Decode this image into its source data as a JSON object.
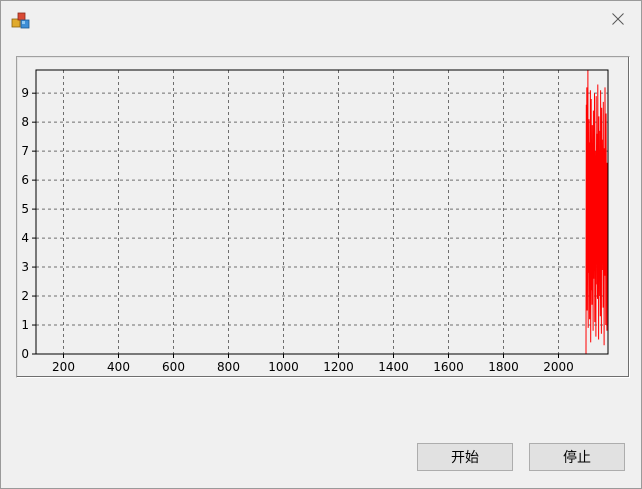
{
  "window": {
    "title": ""
  },
  "buttons": {
    "start_label": "开始",
    "stop_label": "停止"
  },
  "colors": {
    "series": "#ff0000",
    "grid": "#6e6e6e",
    "axis": "#000000"
  },
  "chart_data": {
    "type": "line",
    "title": "",
    "xlabel": "",
    "ylabel": "",
    "xlim": [
      100,
      2180
    ],
    "ylim": [
      0,
      9.8
    ],
    "xticks": [
      200,
      400,
      600,
      800,
      1000,
      1200,
      1400,
      1600,
      1800,
      2000
    ],
    "yticks": [
      0,
      1,
      2,
      3,
      4,
      5,
      6,
      7,
      8,
      9
    ],
    "grid": true,
    "series": [
      {
        "color": "#ff0000",
        "x": [
          100,
          2100,
          2101,
          2102,
          2103,
          2104,
          2105,
          2106,
          2107,
          2108,
          2109,
          2110,
          2111,
          2112,
          2113,
          2114,
          2115,
          2116,
          2117,
          2118,
          2119,
          2120,
          2121,
          2122,
          2123,
          2124,
          2125,
          2126,
          2127,
          2128,
          2129,
          2130,
          2131,
          2132,
          2133,
          2134,
          2135,
          2136,
          2137,
          2138,
          2139,
          2140,
          2141,
          2142,
          2143,
          2144,
          2145,
          2146,
          2147,
          2148,
          2149,
          2150,
          2151,
          2152,
          2153,
          2154,
          2155,
          2156,
          2157,
          2158,
          2159,
          2160,
          2161,
          2162,
          2163,
          2164,
          2165,
          2166,
          2167,
          2168,
          2169,
          2170,
          2171,
          2172,
          2173,
          2174,
          2175,
          2176,
          2177
        ],
        "y": [
          0,
          0,
          8.6,
          2.1,
          9.2,
          1.5,
          7.8,
          3.4,
          9.8,
          0.9,
          6.5,
          2.8,
          8.1,
          4.9,
          1.2,
          7.3,
          3.0,
          9.1,
          0.4,
          5.6,
          8.8,
          2.2,
          6.9,
          1.7,
          7.9,
          3.8,
          5.1,
          0.8,
          8.4,
          2.6,
          6.2,
          4.4,
          9.0,
          1.1,
          7.0,
          3.3,
          5.8,
          0.6,
          8.9,
          2.4,
          6.7,
          4.1,
          7.6,
          1.9,
          9.3,
          3.1,
          5.3,
          0.5,
          8.2,
          2.0,
          6.4,
          3.7,
          7.7,
          1.3,
          9.1,
          4.6,
          5.9,
          0.7,
          8.5,
          2.9,
          6.1,
          4.0,
          7.4,
          1.6,
          8.7,
          3.5,
          5.5,
          0.3,
          7.1,
          2.7,
          9.2,
          4.3,
          6.0,
          1.0,
          8.3,
          3.2,
          5.0,
          0.8,
          6.6
        ]
      }
    ]
  }
}
